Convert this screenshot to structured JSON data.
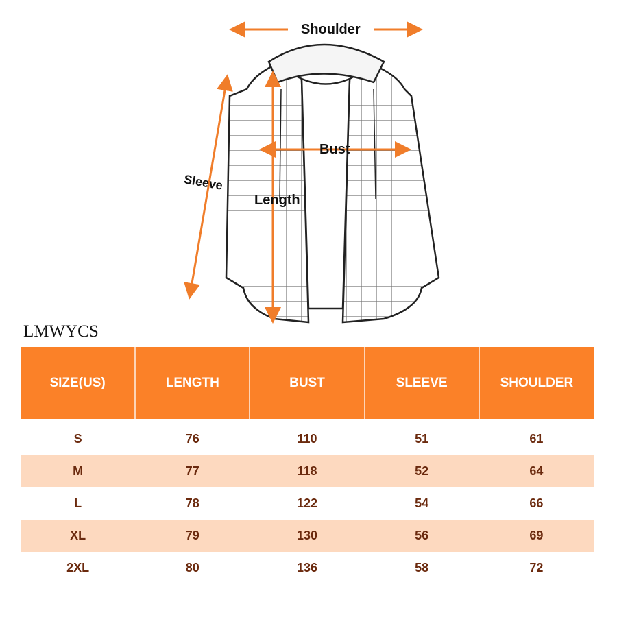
{
  "labels": {
    "shoulder": "Shoulder",
    "bust": "Bust",
    "sleeve": "Sleeve",
    "length": "Length"
  },
  "brand": "LMWYCS",
  "colors": {
    "accent": "#fb8128",
    "row_alt": "#fdd9bf",
    "text": "#6b2a0e"
  },
  "table": {
    "headers": [
      "SIZE(US)",
      "LENGTH",
      "BUST",
      "SLEEVE",
      "SHOULDER"
    ],
    "rows": [
      [
        "S",
        "76",
        "110",
        "51",
        "61"
      ],
      [
        "M",
        "77",
        "118",
        "52",
        "64"
      ],
      [
        "L",
        "78",
        "122",
        "54",
        "66"
      ],
      [
        "XL",
        "79",
        "130",
        "56",
        "69"
      ],
      [
        "2XL",
        "80",
        "136",
        "58",
        "72"
      ]
    ]
  }
}
